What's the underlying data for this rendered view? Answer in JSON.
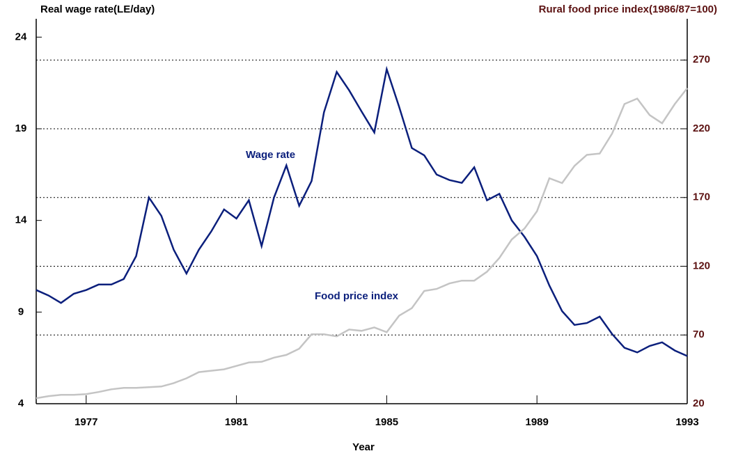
{
  "chart_data": {
    "type": "line",
    "title": "Real wage rate(LE/day)",
    "y2_title": "Rural food price index(1986/87=100)",
    "xlabel": "Year",
    "x": [
      1975.67,
      1976,
      1976.33,
      1976.67,
      1977,
      1977.33,
      1977.67,
      1978,
      1978.33,
      1978.67,
      1979,
      1979.33,
      1979.67,
      1980,
      1980.33,
      1980.67,
      1981,
      1981.33,
      1981.67,
      1982,
      1982.33,
      1982.67,
      1983,
      1983.33,
      1983.67,
      1984,
      1984.33,
      1984.67,
      1985,
      1985.33,
      1985.67,
      1986,
      1986.33,
      1986.67,
      1987,
      1987.33,
      1987.67,
      1988,
      1988.33,
      1988.67,
      1989,
      1989.33,
      1989.67,
      1990,
      1990.33,
      1990.67,
      1991,
      1991.33,
      1991.67,
      1992,
      1992.33,
      1992.67,
      1993
    ],
    "xlim": [
      1975.67,
      1993
    ],
    "xticks": [
      1977,
      1981,
      1985,
      1989,
      1993
    ],
    "ylim": [
      4,
      25
    ],
    "yticks": [
      4,
      9,
      14,
      19,
      24
    ],
    "y2lim": [
      20,
      300
    ],
    "y2ticks": [
      20,
      70,
      120,
      170,
      220,
      270
    ],
    "grid": true,
    "annotations": [
      "Wage rate",
      "Food price index"
    ],
    "series": [
      {
        "name": "Wage rate",
        "color": "#0b1f7c",
        "values": [
          10.2,
          9.9,
          9.5,
          10.0,
          10.2,
          10.5,
          10.5,
          10.8,
          12.05,
          15.25,
          14.25,
          12.4,
          11.1,
          12.4,
          13.4,
          14.6,
          14.1,
          15.1,
          12.6,
          15.25,
          17.0,
          14.8,
          16.15,
          19.9,
          22.1,
          21.1,
          19.95,
          18.8,
          22.25,
          20.2,
          17.95,
          17.55,
          16.5,
          16.2,
          16.05,
          16.9,
          15.1,
          15.45,
          14.0,
          13.1,
          12.05,
          10.45,
          9.05,
          8.3,
          8.4,
          8.75,
          7.8,
          7.05,
          6.8,
          7.15,
          7.35,
          6.9,
          6.6
        ]
      },
      {
        "name": "Food price index",
        "color": "#c4c4c4",
        "axis": "y2",
        "values": [
          24,
          25.5,
          26.5,
          26.5,
          27,
          28.5,
          30.5,
          31.5,
          31.5,
          32,
          32.5,
          35,
          38.5,
          43,
          44,
          45,
          47.5,
          50,
          50.5,
          53.5,
          55.5,
          60,
          70.5,
          70.5,
          69,
          74,
          73,
          75.5,
          72,
          84,
          89.5,
          102,
          103.5,
          107.5,
          109.5,
          109.5,
          116,
          126,
          139.5,
          147.5,
          160,
          184,
          180.5,
          193,
          201,
          202,
          216.5,
          238,
          242,
          230,
          224,
          238,
          249.5
        ]
      }
    ]
  }
}
